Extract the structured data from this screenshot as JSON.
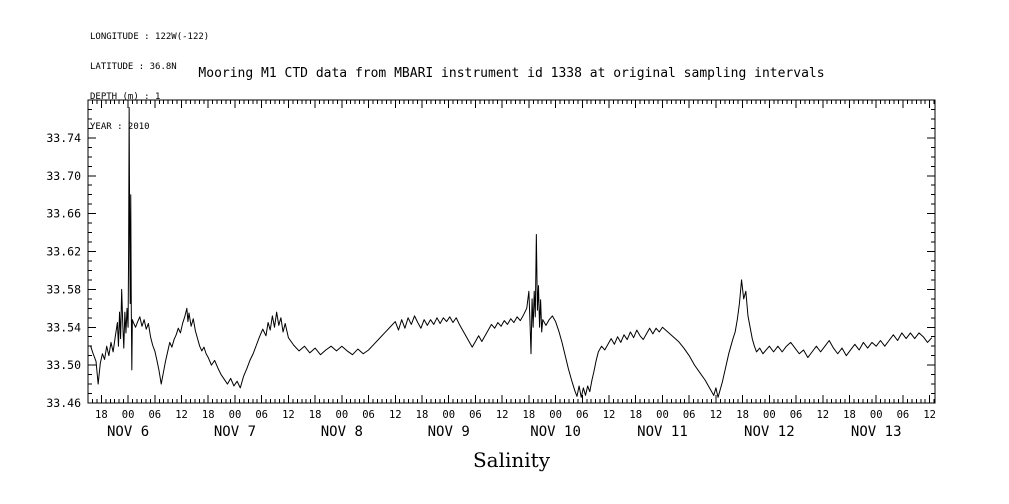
{
  "header_info": {
    "lines": [
      "LONGITUDE : 122W(-122)",
      "LATITUDE : 36.8N",
      "DEPTH (m) : 1",
      "YEAR : 2010"
    ]
  },
  "chart_data": {
    "type": "line",
    "title": "Mooring M1 CTD data from MBARI instrument id 1338 at original sampling intervals",
    "xlabel": "Salinity",
    "ylabel": "",
    "x_axis_meaning": "time as decimal day of November 2010 (e.g. 6.25 = NOV 6 06:00)",
    "xlim": [
      5.625,
      13.55
    ],
    "ylim": [
      33.46,
      33.78
    ],
    "grid": false,
    "legend": null,
    "line_color": "#000000",
    "y_ticks": [
      33.46,
      33.5,
      33.54,
      33.58,
      33.62,
      33.66,
      33.7,
      33.74
    ],
    "y_minor_step": 0.01,
    "x_minor_step_days": 0.0416667,
    "x_tick_positions": [
      5.75,
      6.0,
      6.25,
      6.5,
      6.75,
      7.0,
      7.25,
      7.5,
      7.75,
      8.0,
      8.25,
      8.5,
      8.75,
      9.0,
      9.25,
      9.5,
      9.75,
      10.0,
      10.25,
      10.5,
      10.75,
      11.0,
      11.25,
      11.5,
      11.75,
      12.0,
      12.25,
      12.5,
      12.75,
      13.0,
      13.25,
      13.5
    ],
    "x_tick_labels": [
      "18",
      "00",
      "06",
      "12",
      "18",
      "00",
      "06",
      "12",
      "18",
      "00",
      "06",
      "12",
      "18",
      "00",
      "06",
      "12",
      "18",
      "00",
      "06",
      "12",
      "18",
      "00",
      "06",
      "12",
      "18",
      "00",
      "06",
      "12",
      "18",
      "00",
      "06",
      "12"
    ],
    "day_labels": [
      {
        "x": 6.0,
        "label": "NOV 6"
      },
      {
        "x": 7.0,
        "label": "NOV 7"
      },
      {
        "x": 8.0,
        "label": "NOV 8"
      },
      {
        "x": 9.0,
        "label": "NOV 9"
      },
      {
        "x": 10.0,
        "label": "NOV 10"
      },
      {
        "x": 11.0,
        "label": "NOV 11"
      },
      {
        "x": 12.0,
        "label": "NOV 12"
      },
      {
        "x": 13.0,
        "label": "NOV 13"
      }
    ],
    "series": [
      {
        "name": "salinity",
        "color": "#000000",
        "points": [
          [
            5.65,
            33.52
          ],
          [
            5.67,
            33.513
          ],
          [
            5.7,
            33.504
          ],
          [
            5.72,
            33.48
          ],
          [
            5.74,
            33.502
          ],
          [
            5.76,
            33.512
          ],
          [
            5.78,
            33.506
          ],
          [
            5.8,
            33.52
          ],
          [
            5.82,
            33.51
          ],
          [
            5.84,
            33.524
          ],
          [
            5.86,
            33.514
          ],
          [
            5.88,
            33.53
          ],
          [
            5.9,
            33.545
          ],
          [
            5.91,
            33.52
          ],
          [
            5.92,
            33.556
          ],
          [
            5.93,
            33.528
          ],
          [
            5.94,
            33.58
          ],
          [
            5.95,
            33.544
          ],
          [
            5.96,
            33.518
          ],
          [
            5.97,
            33.556
          ],
          [
            5.98,
            33.534
          ],
          [
            5.99,
            33.56
          ],
          [
            6.0,
            33.54
          ],
          [
            6.005,
            33.62
          ],
          [
            6.01,
            33.772
          ],
          [
            6.015,
            33.64
          ],
          [
            6.02,
            33.565
          ],
          [
            6.025,
            33.68
          ],
          [
            6.03,
            33.56
          ],
          [
            6.035,
            33.495
          ],
          [
            6.04,
            33.548
          ],
          [
            6.05,
            33.545
          ],
          [
            6.07,
            33.54
          ],
          [
            6.09,
            33.546
          ],
          [
            6.11,
            33.551
          ],
          [
            6.13,
            33.541
          ],
          [
            6.15,
            33.548
          ],
          [
            6.17,
            33.538
          ],
          [
            6.19,
            33.544
          ],
          [
            6.21,
            33.53
          ],
          [
            6.23,
            33.521
          ],
          [
            6.25,
            33.515
          ],
          [
            6.27,
            33.505
          ],
          [
            6.29,
            33.494
          ],
          [
            6.31,
            33.48
          ],
          [
            6.33,
            33.492
          ],
          [
            6.35,
            33.504
          ],
          [
            6.37,
            33.514
          ],
          [
            6.39,
            33.524
          ],
          [
            6.41,
            33.519
          ],
          [
            6.43,
            33.527
          ],
          [
            6.45,
            33.532
          ],
          [
            6.47,
            33.539
          ],
          [
            6.49,
            33.534
          ],
          [
            6.51,
            33.544
          ],
          [
            6.53,
            33.551
          ],
          [
            6.55,
            33.56
          ],
          [
            6.56,
            33.546
          ],
          [
            6.57,
            33.555
          ],
          [
            6.59,
            33.541
          ],
          [
            6.61,
            33.549
          ],
          [
            6.63,
            33.536
          ],
          [
            6.65,
            33.528
          ],
          [
            6.67,
            33.52
          ],
          [
            6.69,
            33.515
          ],
          [
            6.71,
            33.519
          ],
          [
            6.73,
            33.512
          ],
          [
            6.75,
            33.508
          ],
          [
            6.78,
            33.5
          ],
          [
            6.81,
            33.505
          ],
          [
            6.84,
            33.497
          ],
          [
            6.87,
            33.49
          ],
          [
            6.9,
            33.485
          ],
          [
            6.93,
            33.48
          ],
          [
            6.96,
            33.486
          ],
          [
            6.99,
            33.478
          ],
          [
            7.02,
            33.483
          ],
          [
            7.05,
            33.476
          ],
          [
            7.08,
            33.488
          ],
          [
            7.11,
            33.496
          ],
          [
            7.14,
            33.505
          ],
          [
            7.17,
            33.512
          ],
          [
            7.2,
            33.521
          ],
          [
            7.23,
            33.53
          ],
          [
            7.26,
            33.538
          ],
          [
            7.29,
            33.531
          ],
          [
            7.31,
            33.545
          ],
          [
            7.33,
            33.537
          ],
          [
            7.35,
            33.552
          ],
          [
            7.37,
            33.54
          ],
          [
            7.39,
            33.556
          ],
          [
            7.41,
            33.542
          ],
          [
            7.43,
            33.55
          ],
          [
            7.45,
            33.535
          ],
          [
            7.47,
            33.544
          ],
          [
            7.5,
            33.529
          ],
          [
            7.55,
            33.521
          ],
          [
            7.6,
            33.515
          ],
          [
            7.65,
            33.52
          ],
          [
            7.7,
            33.513
          ],
          [
            7.75,
            33.518
          ],
          [
            7.8,
            33.511
          ],
          [
            7.85,
            33.516
          ],
          [
            7.9,
            33.52
          ],
          [
            7.95,
            33.515
          ],
          [
            8.0,
            33.52
          ],
          [
            8.05,
            33.515
          ],
          [
            8.1,
            33.511
          ],
          [
            8.15,
            33.517
          ],
          [
            8.2,
            33.512
          ],
          [
            8.25,
            33.516
          ],
          [
            8.3,
            33.522
          ],
          [
            8.35,
            33.528
          ],
          [
            8.4,
            33.534
          ],
          [
            8.45,
            33.54
          ],
          [
            8.5,
            33.546
          ],
          [
            8.53,
            33.537
          ],
          [
            8.56,
            33.548
          ],
          [
            8.59,
            33.539
          ],
          [
            8.62,
            33.55
          ],
          [
            8.65,
            33.543
          ],
          [
            8.68,
            33.552
          ],
          [
            8.71,
            33.545
          ],
          [
            8.74,
            33.539
          ],
          [
            8.77,
            33.548
          ],
          [
            8.8,
            33.542
          ],
          [
            8.83,
            33.548
          ],
          [
            8.86,
            33.543
          ],
          [
            8.89,
            33.55
          ],
          [
            8.92,
            33.544
          ],
          [
            8.95,
            33.55
          ],
          [
            8.98,
            33.546
          ],
          [
            9.01,
            33.551
          ],
          [
            9.04,
            33.545
          ],
          [
            9.07,
            33.55
          ],
          [
            9.1,
            33.543
          ],
          [
            9.13,
            33.537
          ],
          [
            9.16,
            33.531
          ],
          [
            9.19,
            33.525
          ],
          [
            9.22,
            33.519
          ],
          [
            9.25,
            33.525
          ],
          [
            9.28,
            33.531
          ],
          [
            9.31,
            33.525
          ],
          [
            9.34,
            33.531
          ],
          [
            9.37,
            33.537
          ],
          [
            9.4,
            33.543
          ],
          [
            9.43,
            33.539
          ],
          [
            9.46,
            33.545
          ],
          [
            9.49,
            33.541
          ],
          [
            9.52,
            33.547
          ],
          [
            9.55,
            33.543
          ],
          [
            9.58,
            33.549
          ],
          [
            9.61,
            33.545
          ],
          [
            9.64,
            33.551
          ],
          [
            9.67,
            33.547
          ],
          [
            9.7,
            33.553
          ],
          [
            9.73,
            33.56
          ],
          [
            9.75,
            33.578
          ],
          [
            9.76,
            33.547
          ],
          [
            9.77,
            33.512
          ],
          [
            9.78,
            33.57
          ],
          [
            9.79,
            33.54
          ],
          [
            9.8,
            33.578
          ],
          [
            9.81,
            33.551
          ],
          [
            9.82,
            33.638
          ],
          [
            9.83,
            33.558
          ],
          [
            9.84,
            33.584
          ],
          [
            9.85,
            33.54
          ],
          [
            9.86,
            33.569
          ],
          [
            9.87,
            33.535
          ],
          [
            9.88,
            33.548
          ],
          [
            9.91,
            33.542
          ],
          [
            9.94,
            33.548
          ],
          [
            9.97,
            33.552
          ],
          [
            10.0,
            33.546
          ],
          [
            10.03,
            33.536
          ],
          [
            10.06,
            33.524
          ],
          [
            10.09,
            33.51
          ],
          [
            10.12,
            33.496
          ],
          [
            10.15,
            33.484
          ],
          [
            10.18,
            33.473
          ],
          [
            10.2,
            33.467
          ],
          [
            10.22,
            33.478
          ],
          [
            10.24,
            33.466
          ],
          [
            10.26,
            33.476
          ],
          [
            10.28,
            33.468
          ],
          [
            10.3,
            33.478
          ],
          [
            10.32,
            33.472
          ],
          [
            10.34,
            33.484
          ],
          [
            10.36,
            33.494
          ],
          [
            10.38,
            33.505
          ],
          [
            10.4,
            33.514
          ],
          [
            10.43,
            33.52
          ],
          [
            10.46,
            33.516
          ],
          [
            10.49,
            33.522
          ],
          [
            10.52,
            33.528
          ],
          [
            10.55,
            33.522
          ],
          [
            10.58,
            33.53
          ],
          [
            10.61,
            33.524
          ],
          [
            10.64,
            33.532
          ],
          [
            10.67,
            33.527
          ],
          [
            10.7,
            33.535
          ],
          [
            10.73,
            33.529
          ],
          [
            10.76,
            33.537
          ],
          [
            10.79,
            33.531
          ],
          [
            10.82,
            33.527
          ],
          [
            10.85,
            33.533
          ],
          [
            10.88,
            33.539
          ],
          [
            10.91,
            33.533
          ],
          [
            10.94,
            33.539
          ],
          [
            10.97,
            33.535
          ],
          [
            11.0,
            33.54
          ],
          [
            11.05,
            33.535
          ],
          [
            11.1,
            33.53
          ],
          [
            11.15,
            33.525
          ],
          [
            11.2,
            33.518
          ],
          [
            11.25,
            33.51
          ],
          [
            11.3,
            33.5
          ],
          [
            11.35,
            33.492
          ],
          [
            11.4,
            33.484
          ],
          [
            11.45,
            33.474
          ],
          [
            11.48,
            33.468
          ],
          [
            11.5,
            33.476
          ],
          [
            11.52,
            33.466
          ],
          [
            11.54,
            33.474
          ],
          [
            11.56,
            33.482
          ],
          [
            11.58,
            33.492
          ],
          [
            11.6,
            33.502
          ],
          [
            11.62,
            33.512
          ],
          [
            11.64,
            33.52
          ],
          [
            11.66,
            33.528
          ],
          [
            11.68,
            33.535
          ],
          [
            11.7,
            33.548
          ],
          [
            11.72,
            33.565
          ],
          [
            11.74,
            33.59
          ],
          [
            11.76,
            33.57
          ],
          [
            11.78,
            33.578
          ],
          [
            11.8,
            33.552
          ],
          [
            11.82,
            33.54
          ],
          [
            11.84,
            33.528
          ],
          [
            11.86,
            33.52
          ],
          [
            11.88,
            33.514
          ],
          [
            11.91,
            33.518
          ],
          [
            11.94,
            33.512
          ],
          [
            11.97,
            33.516
          ],
          [
            12.0,
            33.52
          ],
          [
            12.04,
            33.514
          ],
          [
            12.08,
            33.52
          ],
          [
            12.12,
            33.514
          ],
          [
            12.16,
            33.52
          ],
          [
            12.2,
            33.524
          ],
          [
            12.24,
            33.518
          ],
          [
            12.28,
            33.512
          ],
          [
            12.32,
            33.516
          ],
          [
            12.36,
            33.508
          ],
          [
            12.4,
            33.514
          ],
          [
            12.44,
            33.52
          ],
          [
            12.48,
            33.514
          ],
          [
            12.52,
            33.52
          ],
          [
            12.56,
            33.526
          ],
          [
            12.6,
            33.518
          ],
          [
            12.64,
            33.512
          ],
          [
            12.68,
            33.518
          ],
          [
            12.72,
            33.51
          ],
          [
            12.76,
            33.516
          ],
          [
            12.8,
            33.522
          ],
          [
            12.84,
            33.516
          ],
          [
            12.88,
            33.524
          ],
          [
            12.92,
            33.518
          ],
          [
            12.96,
            33.524
          ],
          [
            13.0,
            33.52
          ],
          [
            13.04,
            33.526
          ],
          [
            13.08,
            33.52
          ],
          [
            13.12,
            33.526
          ],
          [
            13.16,
            33.532
          ],
          [
            13.2,
            33.526
          ],
          [
            13.24,
            33.534
          ],
          [
            13.28,
            33.528
          ],
          [
            13.32,
            33.534
          ],
          [
            13.36,
            33.528
          ],
          [
            13.4,
            33.534
          ],
          [
            13.44,
            33.53
          ],
          [
            13.48,
            33.524
          ],
          [
            13.52,
            33.529
          ]
        ]
      }
    ]
  }
}
